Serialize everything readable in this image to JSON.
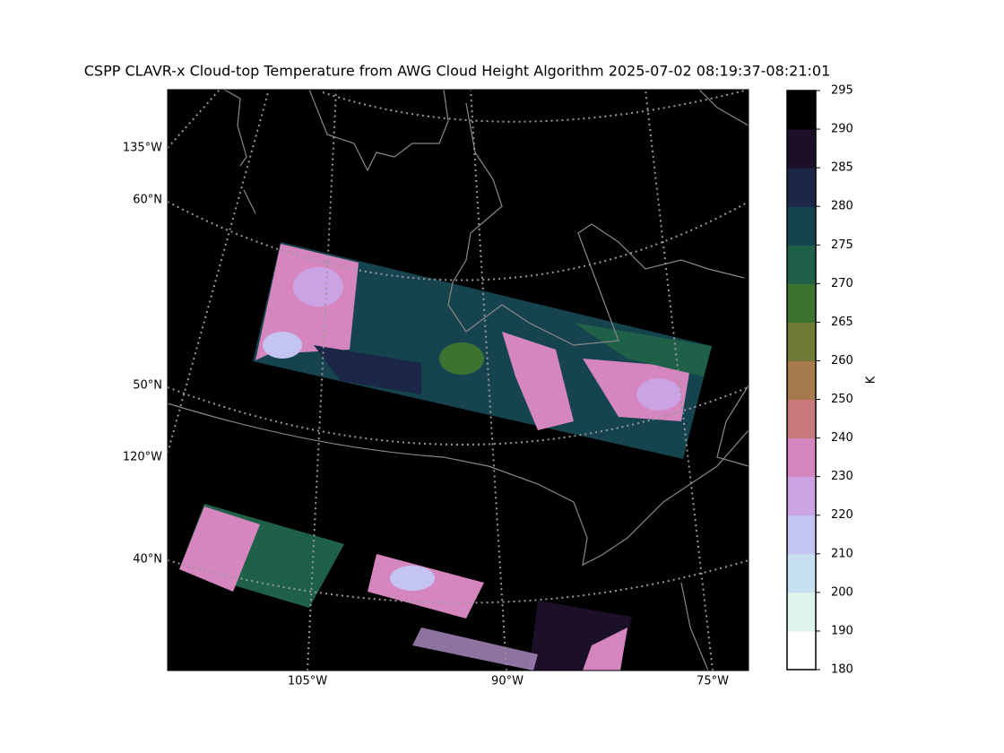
{
  "title": "CSPP CLAVR-x Cloud-top Temperature from AWG Cloud Height Algorithm 2025-07-02 08:19:37-08:21:01",
  "map": {
    "lat_labels": [
      "60°N",
      "50°N",
      "40°N"
    ],
    "lon_labels_left": [
      "135°W",
      "120°W"
    ],
    "lon_labels_bottom": [
      "105°W",
      "90°W",
      "75°W"
    ]
  },
  "colorbar": {
    "label": "K",
    "ticks": [
      180,
      190,
      200,
      210,
      220,
      230,
      240,
      250,
      260,
      265,
      270,
      275,
      280,
      285,
      290,
      295
    ],
    "colors": [
      "#ffffff",
      "#dff3ee",
      "#c6e0f0",
      "#c4c4f2",
      "#cba2e3",
      "#d686bf",
      "#c87a7a",
      "#a67a4c",
      "#6f7a34",
      "#3d7331",
      "#1f6148",
      "#15444e",
      "#1c2647",
      "#1c1028",
      "#000000"
    ]
  }
}
